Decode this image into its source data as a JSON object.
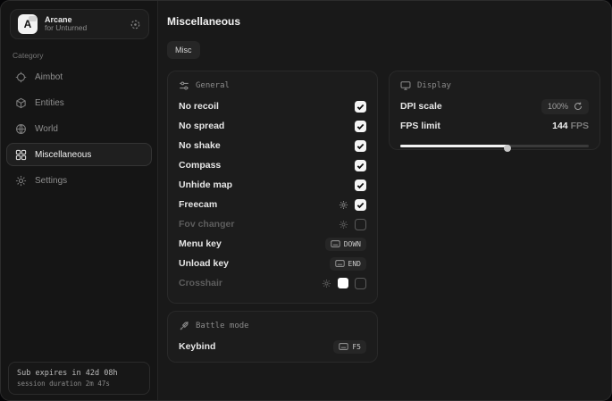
{
  "app": {
    "name": "Arcane",
    "subtitle": "for Unturned",
    "avatar_letter": "A"
  },
  "sidebar": {
    "category_label": "Category",
    "items": [
      {
        "label": "Aimbot",
        "icon": "crosshair-icon",
        "active": false
      },
      {
        "label": "Entities",
        "icon": "cube-icon",
        "active": false
      },
      {
        "label": "World",
        "icon": "globe-icon",
        "active": false
      },
      {
        "label": "Miscellaneous",
        "icon": "grid-icon",
        "active": true
      },
      {
        "label": "Settings",
        "icon": "gear-icon",
        "active": false
      }
    ],
    "status": {
      "line1": "Sub expires in 42d 08h",
      "line2": "session duration 2m 47s"
    }
  },
  "main": {
    "title": "Miscellaneous",
    "tabs": [
      {
        "label": "Misc"
      }
    ],
    "panels": {
      "general": {
        "title": "General",
        "rows": [
          {
            "label": "No recoil",
            "type": "checkbox",
            "checked": true
          },
          {
            "label": "No spread",
            "type": "checkbox",
            "checked": true
          },
          {
            "label": "No shake",
            "type": "checkbox",
            "checked": true
          },
          {
            "label": "Compass",
            "type": "checkbox",
            "checked": true
          },
          {
            "label": "Unhide map",
            "type": "checkbox",
            "checked": true
          },
          {
            "label": "Freecam",
            "type": "checkbox",
            "checked": true,
            "has_settings": true
          },
          {
            "label": "Fov changer",
            "type": "checkbox",
            "checked": false,
            "has_settings": true,
            "disabled": true
          },
          {
            "label": "Menu key",
            "type": "keybind",
            "key": "DOWN"
          },
          {
            "label": "Unload key",
            "type": "keybind",
            "key": "END"
          },
          {
            "label": "Crosshair",
            "type": "color-checkbox",
            "checked": false,
            "has_settings": true,
            "disabled": true,
            "color": "#ffffff"
          }
        ]
      },
      "battle": {
        "title": "Battle mode",
        "rows": [
          {
            "label": "Keybind",
            "type": "keybind",
            "key": "F5"
          }
        ]
      },
      "display": {
        "title": "Display",
        "dpi_label": "DPI scale",
        "dpi_value": "100%",
        "fps_label": "FPS limit",
        "fps_value": "144",
        "fps_unit": "FPS",
        "slider_percent": 57
      }
    }
  }
}
